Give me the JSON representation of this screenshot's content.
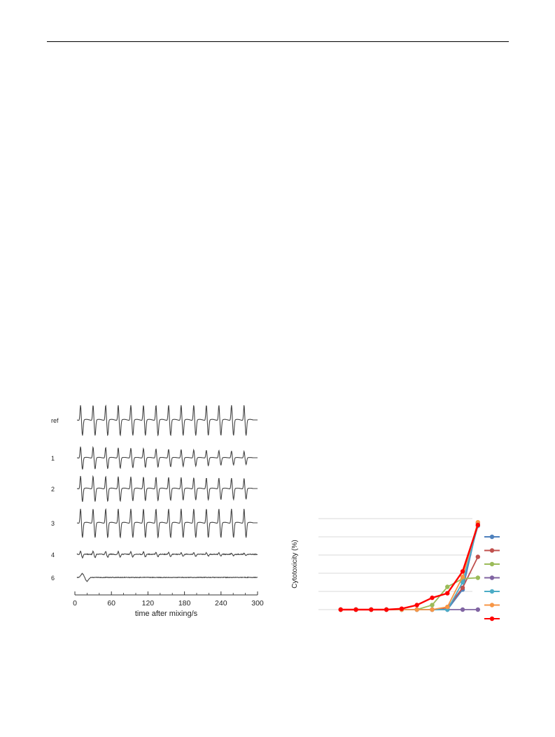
{
  "chart_data": [
    {
      "type": "line",
      "title": "",
      "xlabel": "time after mixing/s",
      "ylabel": "",
      "xlim": [
        0,
        300
      ],
      "x_ticks": [
        "0",
        "60",
        "120",
        "180",
        "240",
        "300"
      ],
      "grid": false,
      "traces": [
        {
          "label": "ref",
          "pulses": 14,
          "amplitude": 1.0,
          "decay": 0.0,
          "noise": 0.0
        },
        {
          "label": "1",
          "pulses": 14,
          "amplitude": 0.75,
          "decay": 0.45,
          "noise": 0.0
        },
        {
          "label": "2",
          "pulses": 14,
          "amplitude": 0.85,
          "decay": 0.2,
          "noise": 0.0
        },
        {
          "label": "3",
          "pulses": 14,
          "amplitude": 0.95,
          "decay": 0.0,
          "noise": 0.0
        },
        {
          "label": "4",
          "pulses": 14,
          "amplitude": 0.22,
          "decay": 0.7,
          "noise": 0.05
        },
        {
          "label": "6",
          "pulses": 1,
          "amplitude": 0.25,
          "decay": 0.0,
          "noise": 0.04
        }
      ]
    },
    {
      "type": "line",
      "title": "",
      "xlabel": "",
      "ylabel": "Cytotoxicity (%)",
      "ylim": [
        0,
        100
      ],
      "grid": true,
      "legend_position": "right",
      "x": [
        1,
        2,
        3,
        4,
        5,
        6,
        7,
        8,
        9,
        10
      ],
      "series": [
        {
          "color": "#4f81bd",
          "values": [
            0,
            0,
            0,
            0,
            0,
            0,
            0,
            0,
            22,
            95
          ]
        },
        {
          "color": "#c0504d",
          "values": [
            0,
            0,
            0,
            0,
            0,
            0,
            0,
            2,
            24,
            58
          ]
        },
        {
          "color": "#9bbb59",
          "values": [
            0,
            0,
            0,
            0,
            0,
            0,
            5,
            25,
            34,
            35
          ]
        },
        {
          "color": "#8064a2",
          "values": [
            0,
            0,
            0,
            0,
            0,
            0,
            0,
            0,
            0,
            0
          ]
        },
        {
          "color": "#4bacc6",
          "values": [
            0,
            0,
            0,
            0,
            0,
            0,
            0,
            0,
            30,
            92
          ]
        },
        {
          "color": "#f79646",
          "values": [
            0,
            0,
            0,
            0,
            0,
            0,
            0,
            3,
            36,
            96
          ]
        },
        {
          "color": "#ff0000",
          "values": [
            0,
            0,
            0,
            0,
            1,
            5,
            13,
            18,
            42,
            93
          ]
        }
      ]
    }
  ]
}
